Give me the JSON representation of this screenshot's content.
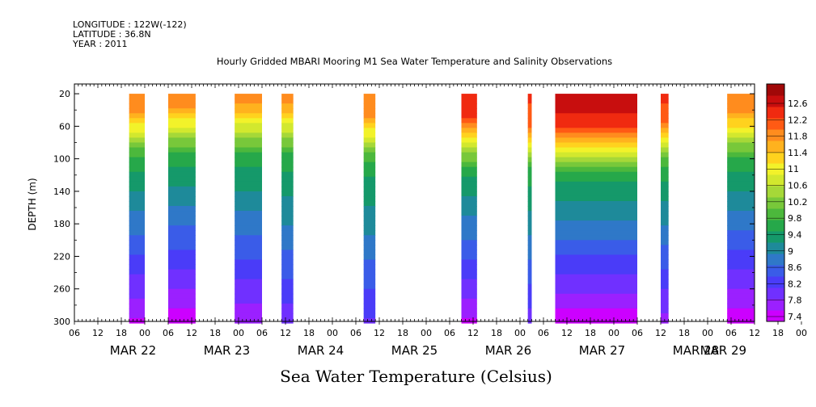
{
  "header": {
    "longitude": "LONGITUDE : 122W(-122)",
    "latitude": "LATITUDE : 36.8N",
    "year": "YEAR : 2011",
    "title": "Hourly Gridded MBARI Mooring M1 Sea Water Temperature and Salinity Observations"
  },
  "chart_data": {
    "type": "heatmap",
    "title": "Hourly Gridded MBARI Mooring M1 Sea Water Temperature and Salinity Observations",
    "xlabel": "",
    "ylabel": "DEPTH (m)",
    "bottom_title": "Sea Water Temperature (Celsius)",
    "x_hours_range": [
      0,
      170
    ],
    "hour_ticks": [
      "06",
      "12",
      "18",
      "00",
      "06",
      "12",
      "18",
      "00",
      "06",
      "12",
      "18",
      "00",
      "06",
      "12",
      "18",
      "00",
      "06",
      "12",
      "18",
      "00",
      "06",
      "12",
      "18",
      "00",
      "06",
      "12",
      "18",
      "00",
      "06",
      "12",
      "18",
      "00",
      "06"
    ],
    "day_labels": [
      {
        "label": "MAR 22",
        "hour": 15
      },
      {
        "label": "MAR 23",
        "hour": 39
      },
      {
        "label": "MAR 24",
        "hour": 63
      },
      {
        "label": "MAR 25",
        "hour": 87
      },
      {
        "label": "MAR 26",
        "hour": 111
      },
      {
        "label": "MAR 27",
        "hour": 135
      },
      {
        "label": "MAR 28",
        "hour": 159
      },
      {
        "label": "MAR 29",
        "hour": 166
      }
    ],
    "y_ticks": [
      20,
      60,
      100,
      140,
      180,
      220,
      260,
      300
    ],
    "ylim": [
      300,
      8
    ],
    "colorbar": {
      "levels": [
        7.4,
        7.8,
        8.2,
        8.6,
        9,
        9.4,
        9.8,
        10.2,
        10.6,
        11,
        11.4,
        11.8,
        12.2,
        12.6
      ],
      "colors": [
        "#cc00ff",
        "#9b20ff",
        "#7030ff",
        "#4a3cf8",
        "#3a5ce8",
        "#2f78c8",
        "#1e8a9a",
        "#15996a",
        "#26a84a",
        "#4cb83c",
        "#78c83a",
        "#a6d838",
        "#d2e82e",
        "#f2f22a",
        "#ffd21e",
        "#ffb21e",
        "#ff8c1e",
        "#ff5a14",
        "#f02a10",
        "#c80e0e",
        "#a00808"
      ]
    },
    "data_blocks": [
      {
        "start": 14,
        "end": 18,
        "surface": 11.5,
        "thermocline": 60,
        "deep": 7.6
      },
      {
        "start": 24,
        "end": 31,
        "surface": 11.5,
        "thermocline": 55,
        "deep": 7.5
      },
      {
        "start": 41,
        "end": 48,
        "surface": 11.4,
        "thermocline": 55,
        "deep": 7.7
      },
      {
        "start": 53,
        "end": 56,
        "surface": 11.4,
        "thermocline": 55,
        "deep": 8.0
      },
      {
        "start": 74,
        "end": 77,
        "surface": 11.6,
        "thermocline": 65,
        "deep": 8.1
      },
      {
        "start": 99,
        "end": 103,
        "surface": 12.0,
        "thermocline": 70,
        "deep": 7.6
      },
      {
        "start": 116,
        "end": 117,
        "surface": 11.9,
        "thermocline": 75,
        "deep": 8.0
      },
      {
        "start": 123,
        "end": 144,
        "surface": 12.2,
        "thermocline": 78,
        "deep": 7.5
      },
      {
        "start": 150,
        "end": 152,
        "surface": 11.9,
        "thermocline": 70,
        "deep": 7.8
      },
      {
        "start": 167,
        "end": 174,
        "surface": 11.6,
        "thermocline": 60,
        "deep": 7.5
      }
    ]
  }
}
